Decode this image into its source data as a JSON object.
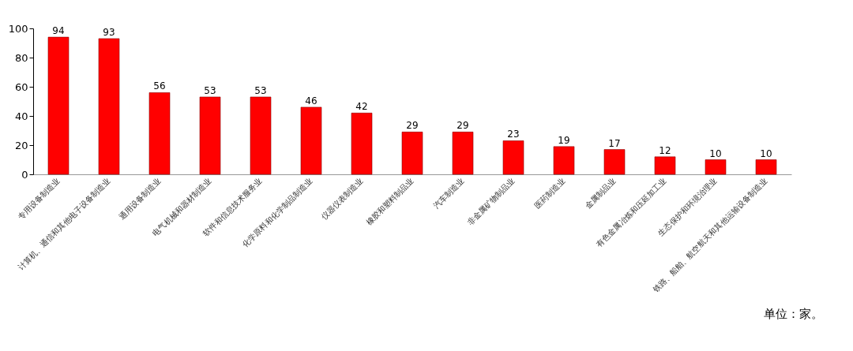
{
  "chart_data": {
    "type": "bar",
    "categories": [
      "专用设备制造业",
      "计算机、通信和其他电子设备制造业",
      "通用设备制造业",
      "电气机械和器材制造业",
      "软件和信息技术服务业",
      "化学原料和化学制品制造业",
      "仪器仪表制造业",
      "橡胶和塑料制品业",
      "汽车制造业",
      "非金属矿物制品业",
      "医药制造业",
      "金属制品业",
      "有色金属冶炼和压延加工业",
      "生态保护和环境治理业",
      "铁路、船舶、航空航天和其他运输设备制造业"
    ],
    "values": [
      94,
      93,
      56,
      53,
      53,
      46,
      42,
      29,
      29,
      23,
      19,
      17,
      12,
      10,
      10
    ],
    "color": "#ff0000",
    "ylim": [
      0,
      100
    ],
    "yticks": [
      0,
      20,
      40,
      60,
      80,
      100
    ],
    "grid": false,
    "data_labels": true,
    "annotations": [
      "单位：家。"
    ]
  }
}
